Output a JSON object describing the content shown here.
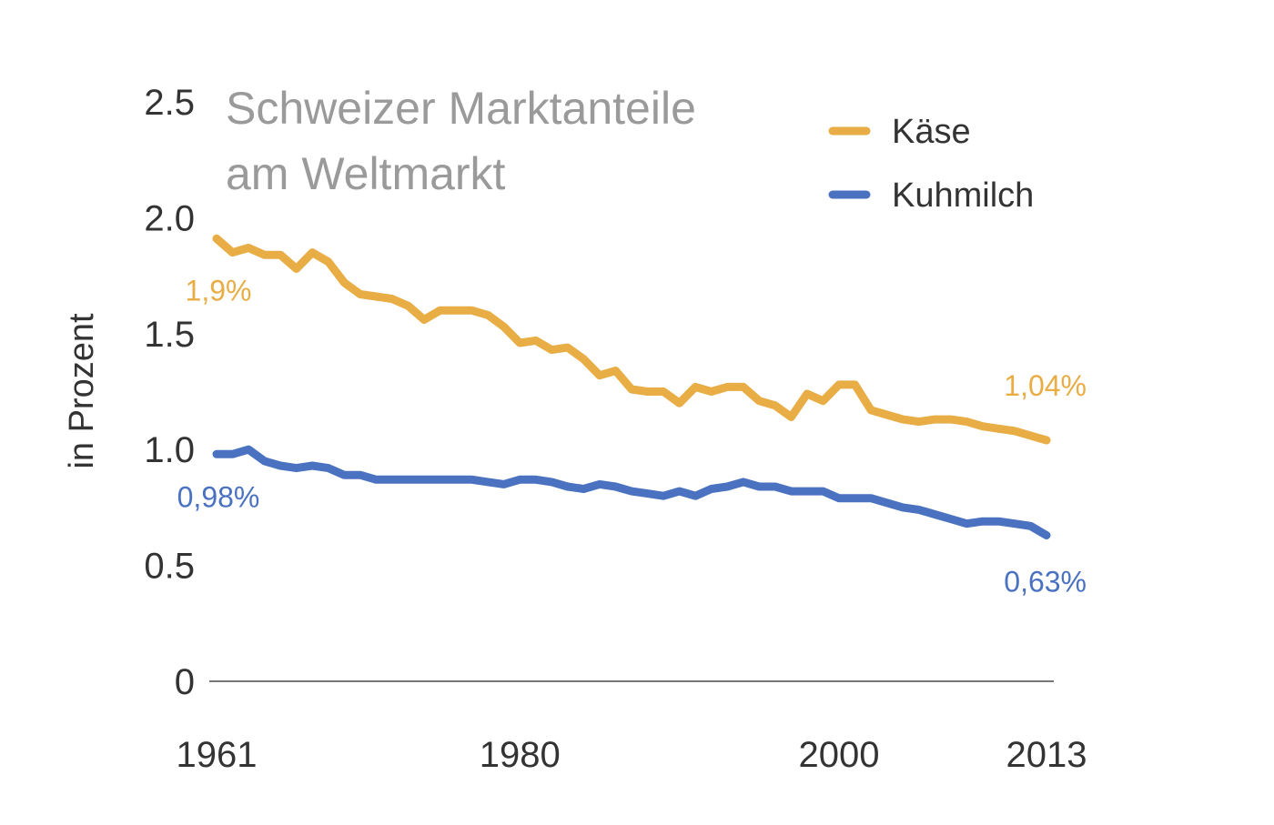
{
  "chart_data": {
    "type": "line",
    "title": "Schweizer Marktanteile",
    "subtitle": "am Weltmarkt",
    "xlabel": "",
    "ylabel": "in Prozent",
    "xlim": [
      1961,
      2013
    ],
    "ylim": [
      0,
      2.5
    ],
    "x_ticks": [
      "1961",
      "1980",
      "2000",
      "2013"
    ],
    "y_ticks": [
      "0",
      "0.5",
      "1.0",
      "1.5",
      "2.0",
      "2.5"
    ],
    "grid": false,
    "legend_position": "top-right",
    "x": [
      1961,
      1962,
      1963,
      1964,
      1965,
      1966,
      1967,
      1968,
      1969,
      1970,
      1971,
      1972,
      1973,
      1974,
      1975,
      1976,
      1977,
      1978,
      1979,
      1980,
      1981,
      1982,
      1983,
      1984,
      1985,
      1986,
      1987,
      1988,
      1989,
      1990,
      1991,
      1992,
      1993,
      1994,
      1995,
      1996,
      1997,
      1998,
      1999,
      2000,
      2001,
      2002,
      2003,
      2004,
      2005,
      2006,
      2007,
      2008,
      2009,
      2010,
      2011,
      2012,
      2013
    ],
    "series": [
      {
        "name": "Käse",
        "color": "#e8ad44",
        "values": [
          1.91,
          1.85,
          1.87,
          1.84,
          1.84,
          1.78,
          1.85,
          1.81,
          1.72,
          1.67,
          1.66,
          1.65,
          1.62,
          1.56,
          1.6,
          1.6,
          1.6,
          1.58,
          1.53,
          1.46,
          1.47,
          1.43,
          1.44,
          1.39,
          1.32,
          1.34,
          1.26,
          1.25,
          1.25,
          1.2,
          1.27,
          1.25,
          1.27,
          1.27,
          1.21,
          1.19,
          1.14,
          1.24,
          1.21,
          1.28,
          1.28,
          1.17,
          1.15,
          1.13,
          1.12,
          1.13,
          1.13,
          1.12,
          1.1,
          1.09,
          1.08,
          1.06,
          1.04
        ],
        "start_label": "1,9%",
        "end_label": "1,04%"
      },
      {
        "name": "Kuhmilch",
        "color": "#4a72c0",
        "values": [
          0.98,
          0.98,
          1.0,
          0.95,
          0.93,
          0.92,
          0.93,
          0.92,
          0.89,
          0.89,
          0.87,
          0.87,
          0.87,
          0.87,
          0.87,
          0.87,
          0.87,
          0.86,
          0.85,
          0.87,
          0.87,
          0.86,
          0.84,
          0.83,
          0.85,
          0.84,
          0.82,
          0.81,
          0.8,
          0.82,
          0.8,
          0.83,
          0.84,
          0.86,
          0.84,
          0.84,
          0.82,
          0.82,
          0.82,
          0.79,
          0.79,
          0.79,
          0.77,
          0.75,
          0.74,
          0.72,
          0.7,
          0.68,
          0.69,
          0.69,
          0.68,
          0.67,
          0.63
        ],
        "start_label": "0,98%",
        "end_label": "0,63%"
      }
    ]
  }
}
